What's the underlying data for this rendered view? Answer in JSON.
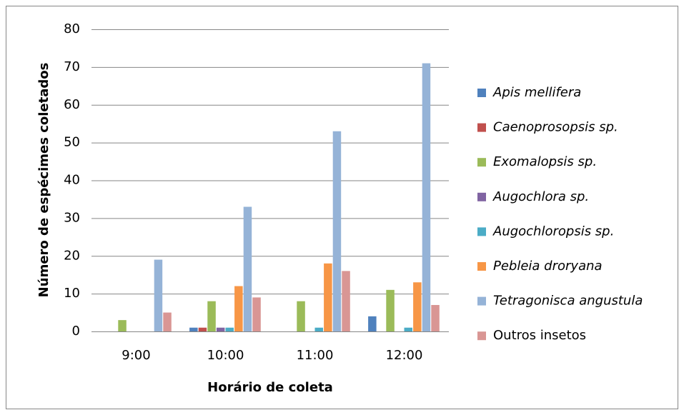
{
  "chart_data": {
    "type": "bar",
    "x_label": "Horário de coleta",
    "y_label": "Número de espécimes coletados",
    "categories": [
      "9:00",
      "10:00",
      "11:00",
      "12:00"
    ],
    "series": [
      {
        "name": "Apis mellifera",
        "color": "#4F81BD",
        "italic": true,
        "values": [
          0,
          1,
          0,
          4
        ]
      },
      {
        "name": "Caenoprosopsis sp.",
        "color": "#C0504D",
        "italic": true,
        "values": [
          0,
          1,
          0,
          0
        ]
      },
      {
        "name": "Exomalopsis sp.",
        "color": "#9BBB59",
        "italic": true,
        "values": [
          3,
          8,
          8,
          11
        ]
      },
      {
        "name": "Augochlora sp.",
        "color": "#8064A2",
        "italic": true,
        "values": [
          0,
          1,
          0,
          0
        ]
      },
      {
        "name": "Augochloropsis sp.",
        "color": "#4BACC6",
        "italic": true,
        "values": [
          0,
          1,
          1,
          1
        ]
      },
      {
        "name": "Pebleia droryana",
        "color": "#F79646",
        "italic": true,
        "values": [
          0,
          12,
          18,
          13
        ]
      },
      {
        "name": "Tetragonisca angustula",
        "color": "#95B3D7",
        "italic": true,
        "values": [
          19,
          33,
          53,
          71
        ]
      },
      {
        "name": "Outros insetos",
        "color": "#D99694",
        "italic": false,
        "values": [
          5,
          9,
          16,
          7
        ]
      }
    ],
    "ylim": [
      0,
      80
    ],
    "yticks": [
      0,
      10,
      20,
      30,
      40,
      50,
      60,
      70,
      80
    ],
    "grid": true,
    "legend": "right"
  }
}
